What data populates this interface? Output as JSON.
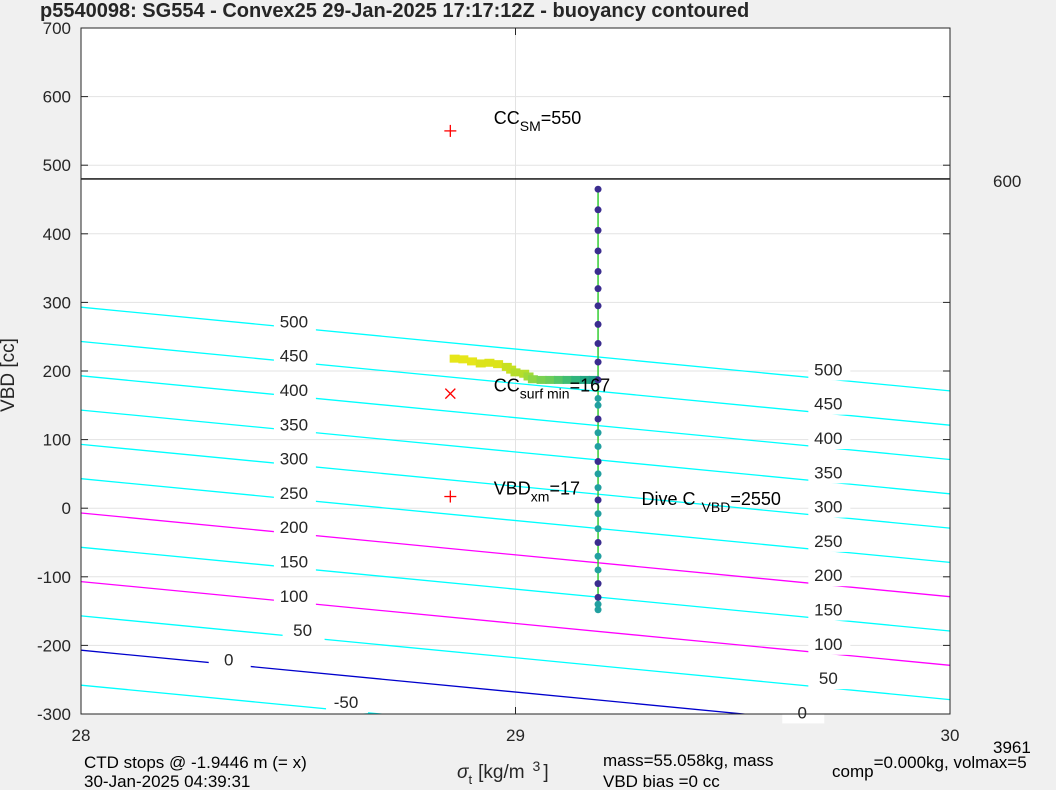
{
  "chart_data": {
    "type": "line",
    "title": "p5540098: SG554 - Convex25 29-Jan-2025 17:17:12Z - buoyancy contoured",
    "xlabel": "σ",
    "xlabel_sub": "t",
    "xlabel_units": "[kg/m",
    "xlabel_sup": "3",
    "xlabel_close": "]",
    "ylabel": "VBD [cc]",
    "xlim": [
      28,
      30
    ],
    "ylim": [
      -300,
      700
    ],
    "xticks": [
      "28",
      "29",
      "30"
    ],
    "yticks": [
      "-300",
      "-200",
      "-100",
      "0",
      "100",
      "200",
      "300",
      "400",
      "500",
      "600",
      "700"
    ],
    "grid": true,
    "contours": [
      {
        "level": "-50",
        "color": "#00ffff",
        "y_at_28": -258,
        "y_at_30": -380
      },
      {
        "level": "0",
        "color": "#0000cc",
        "y_at_28": -207,
        "y_at_30": -329
      },
      {
        "level": "50",
        "color": "#00ffff",
        "y_at_28": -157,
        "y_at_30": -279
      },
      {
        "level": "100",
        "color": "#ff00ff",
        "y_at_28": -107,
        "y_at_30": -229
      },
      {
        "level": "150",
        "color": "#00ffff",
        "y_at_28": -57,
        "y_at_30": -179
      },
      {
        "level": "200",
        "color": "#ff00ff",
        "y_at_28": -7,
        "y_at_30": -129
      },
      {
        "level": "250",
        "color": "#00ffff",
        "y_at_28": 43,
        "y_at_30": -79
      },
      {
        "level": "300",
        "color": "#00ffff",
        "y_at_28": 93,
        "y_at_30": -29
      },
      {
        "level": "350",
        "color": "#00ffff",
        "y_at_28": 143,
        "y_at_30": 21
      },
      {
        "level": "400",
        "color": "#00ffff",
        "y_at_28": 193,
        "y_at_30": 71
      },
      {
        "level": "450",
        "color": "#00ffff",
        "y_at_28": 243,
        "y_at_30": 121
      },
      {
        "level": "500",
        "color": "#00ffff",
        "y_at_28": 293,
        "y_at_30": 171
      }
    ],
    "contour_labels_left": [
      {
        "text": "-50",
        "x": 28.61,
        "y": -290
      },
      {
        "text": "0",
        "x": 28.34,
        "y": -228
      },
      {
        "text": "50",
        "x": 28.51,
        "y": -185
      },
      {
        "text": "100",
        "x": 28.49,
        "y": -135
      },
      {
        "text": "150",
        "x": 28.49,
        "y": -85
      },
      {
        "text": "200",
        "x": 28.49,
        "y": -35
      },
      {
        "text": "250",
        "x": 28.49,
        "y": 15
      },
      {
        "text": "300",
        "x": 28.49,
        "y": 65
      },
      {
        "text": "350",
        "x": 28.49,
        "y": 115
      },
      {
        "text": "400",
        "x": 28.49,
        "y": 165
      },
      {
        "text": "450",
        "x": 28.49,
        "y": 215
      },
      {
        "text": "500",
        "x": 28.49,
        "y": 265
      }
    ],
    "contour_labels_right": [
      {
        "text": "0",
        "x": 29.66,
        "y": -305
      },
      {
        "text": "50",
        "x": 29.72,
        "y": -255
      },
      {
        "text": "100",
        "x": 29.72,
        "y": -205
      },
      {
        "text": "150",
        "x": 29.72,
        "y": -155
      },
      {
        "text": "200",
        "x": 29.72,
        "y": -105
      },
      {
        "text": "250",
        "x": 29.72,
        "y": -55
      },
      {
        "text": "300",
        "x": 29.72,
        "y": -5
      },
      {
        "text": "350",
        "x": 29.72,
        "y": 45
      },
      {
        "text": "400",
        "x": 29.72,
        "y": 95
      },
      {
        "text": "450",
        "x": 29.72,
        "y": 145
      },
      {
        "text": "500",
        "x": 29.72,
        "y": 195
      }
    ],
    "hline": {
      "y": 480,
      "color": "#000000",
      "label": "600"
    },
    "markers": [
      {
        "x": 28.85,
        "y": 550,
        "symbol": "+",
        "color": "#ff0000"
      },
      {
        "x": 28.85,
        "y": 167,
        "symbol": "x",
        "color": "#ff0000"
      },
      {
        "x": 28.85,
        "y": 17,
        "symbol": "+",
        "color": "#ff0000"
      }
    ],
    "annotations": {
      "cc_sm": {
        "base": "CC",
        "sub": "SM",
        "rest": "=550",
        "x": 28.95,
        "y": 560
      },
      "cc_surf": {
        "base": "CC",
        "sub": "surf min",
        "rest": "=167",
        "x": 28.95,
        "y": 170
      },
      "vbd_xm": {
        "base": "VBD",
        "sub": "xm",
        "rest": "=17",
        "x": 28.95,
        "y": 20
      },
      "dive_c": {
        "base": "Dive C",
        "sub": "VBD",
        "rest": "=2550",
        "x": 29.29,
        "y": 5
      }
    },
    "profile_line": {
      "x": [
        29.19,
        29.19
      ],
      "y": [
        465,
        -150
      ],
      "color": "#33cc33"
    },
    "profile_points": [
      {
        "x": 29.19,
        "y": 465,
        "color": "#3b2d8f"
      },
      {
        "x": 29.19,
        "y": 435,
        "color": "#3b2d8f"
      },
      {
        "x": 29.19,
        "y": 405,
        "color": "#3b2d8f"
      },
      {
        "x": 29.19,
        "y": 375,
        "color": "#3b2d8f"
      },
      {
        "x": 29.19,
        "y": 345,
        "color": "#3b2d8f"
      },
      {
        "x": 29.19,
        "y": 320,
        "color": "#3b2d8f"
      },
      {
        "x": 29.19,
        "y": 295,
        "color": "#3b2d8f"
      },
      {
        "x": 29.19,
        "y": 268,
        "color": "#3b2d8f"
      },
      {
        "x": 29.19,
        "y": 240,
        "color": "#3b2d8f"
      },
      {
        "x": 29.19,
        "y": 213,
        "color": "#3b2d8f"
      },
      {
        "x": 29.19,
        "y": 187,
        "color": "#3b2d8f"
      },
      {
        "x": 29.19,
        "y": 160,
        "color": "#22a0a0"
      },
      {
        "x": 29.19,
        "y": 150,
        "color": "#22a0a0"
      },
      {
        "x": 29.19,
        "y": 130,
        "color": "#3b2d8f"
      },
      {
        "x": 29.19,
        "y": 110,
        "color": "#22a0a0"
      },
      {
        "x": 29.19,
        "y": 90,
        "color": "#22a0a0"
      },
      {
        "x": 29.19,
        "y": 68,
        "color": "#3b2d8f"
      },
      {
        "x": 29.19,
        "y": 50,
        "color": "#22a0a0"
      },
      {
        "x": 29.19,
        "y": 30,
        "color": "#22a0a0"
      },
      {
        "x": 29.19,
        "y": 12,
        "color": "#3b2d8f"
      },
      {
        "x": 29.19,
        "y": -8,
        "color": "#22a0a0"
      },
      {
        "x": 29.19,
        "y": -30,
        "color": "#22a0a0"
      },
      {
        "x": 29.19,
        "y": -50,
        "color": "#3b2d8f"
      },
      {
        "x": 29.19,
        "y": -70,
        "color": "#22a0a0"
      },
      {
        "x": 29.19,
        "y": -90,
        "color": "#22a0a0"
      },
      {
        "x": 29.19,
        "y": -110,
        "color": "#3b2d8f"
      },
      {
        "x": 29.19,
        "y": -130,
        "color": "#3b2d8f"
      },
      {
        "x": 29.19,
        "y": -140,
        "color": "#22a0a0"
      },
      {
        "x": 29.19,
        "y": -148,
        "color": "#22a0a0"
      }
    ],
    "surface_track": [
      {
        "x": 28.86,
        "y": 218,
        "color": "#e6e619"
      },
      {
        "x": 28.88,
        "y": 217,
        "color": "#e6e619"
      },
      {
        "x": 28.9,
        "y": 214,
        "color": "#e6e619"
      },
      {
        "x": 28.92,
        "y": 211,
        "color": "#dce319"
      },
      {
        "x": 28.94,
        "y": 212,
        "color": "#dce319"
      },
      {
        "x": 28.96,
        "y": 210,
        "color": "#dce319"
      },
      {
        "x": 28.98,
        "y": 206,
        "color": "#c8e020"
      },
      {
        "x": 28.99,
        "y": 202,
        "color": "#c8e020"
      },
      {
        "x": 29.0,
        "y": 198,
        "color": "#b5de2b"
      },
      {
        "x": 29.02,
        "y": 196,
        "color": "#b5de2b"
      },
      {
        "x": 29.03,
        "y": 192,
        "color": "#a0da39"
      },
      {
        "x": 29.04,
        "y": 188,
        "color": "#8ed645"
      },
      {
        "x": 29.06,
        "y": 187,
        "color": "#7ad151"
      },
      {
        "x": 29.08,
        "y": 187,
        "color": "#6ccd5a"
      },
      {
        "x": 29.1,
        "y": 187,
        "color": "#55c667"
      },
      {
        "x": 29.12,
        "y": 187,
        "color": "#40bd72"
      },
      {
        "x": 29.14,
        "y": 187,
        "color": "#2fb47c"
      },
      {
        "x": 29.16,
        "y": 187,
        "color": "#22a884"
      },
      {
        "x": 29.18,
        "y": 187,
        "color": "#1f9e89"
      }
    ],
    "footer": {
      "line1": "CTD stops @ -1.9446 m (= x)",
      "line2": "30-Jan-2025 04:39:31",
      "mass_line1": "mass=55.058kg, mass",
      "mass_sub": "comp",
      "mass_rest": "=0.000kg, volmax=5",
      "mass_line2": "VBD bias =0 cc",
      "corner": "3961"
    }
  }
}
